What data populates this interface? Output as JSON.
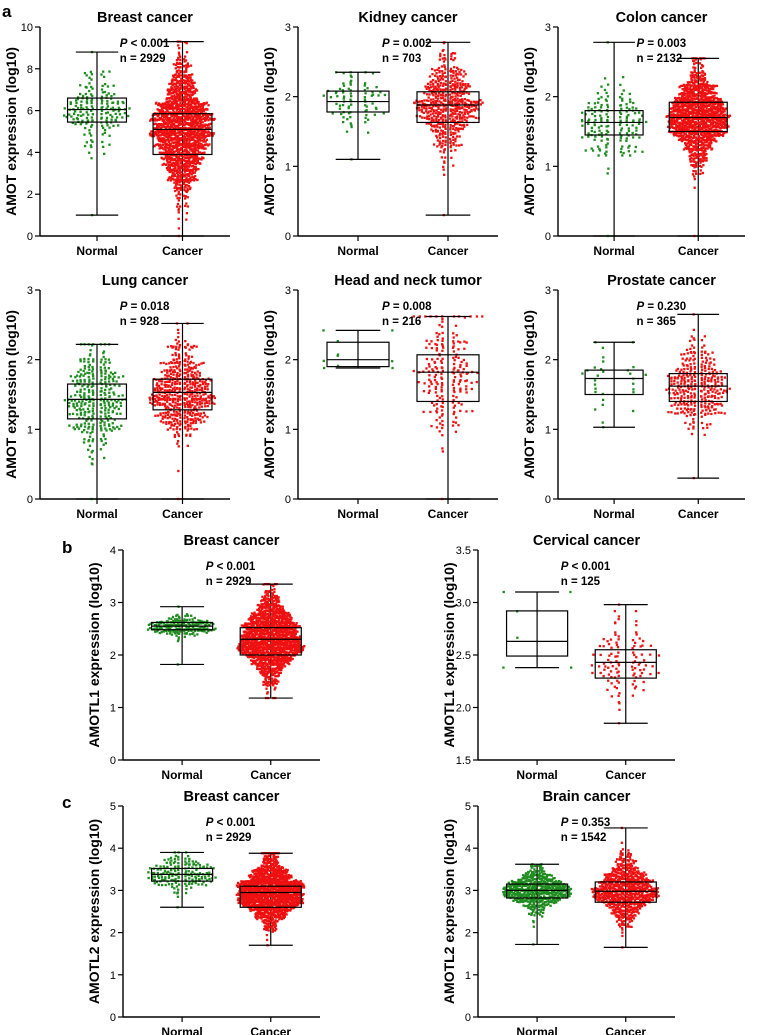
{
  "panel_labels": [
    "a",
    "b",
    "c"
  ],
  "colors": {
    "normal": "#1e8c1e",
    "cancer": "#ee1111",
    "axis": "#000000"
  },
  "chart_data": [
    {
      "id": "breast-amot",
      "panel": "a",
      "type": "box-scatter",
      "title": "Breast cancer",
      "ylabel": "AMOT expression (log10)",
      "ylim": [
        0,
        10
      ],
      "yticks": [
        "0",
        "2",
        "4",
        "6",
        "8",
        "10"
      ],
      "categories": [
        "Normal",
        "Cancer"
      ],
      "p_label": "P",
      "p_value": " < 0.001",
      "n_label": "n = 2929",
      "series": [
        {
          "name": "Normal",
          "min": 1.0,
          "q1": 5.45,
          "median": 6.05,
          "q3": 6.6,
          "max": 8.8,
          "point_count": 170
        },
        {
          "name": "Cancer",
          "min": 0.0,
          "q1": 3.9,
          "median": 5.1,
          "q3": 5.85,
          "max": 9.3,
          "point_count": 1400
        }
      ]
    },
    {
      "id": "kidney-amot",
      "panel": "a",
      "type": "box-scatter",
      "title": "Kidney cancer",
      "ylabel": "AMOT expression (log10)",
      "ylim": [
        0,
        3
      ],
      "yticks": [
        "0",
        "1",
        "2",
        "3"
      ],
      "categories": [
        "Normal",
        "Cancer"
      ],
      "p_label": "P",
      "p_value": " = 0.002",
      "n_label": "n = 703",
      "series": [
        {
          "name": "Normal",
          "min": 1.1,
          "q1": 1.78,
          "median": 1.93,
          "q3": 2.08,
          "max": 2.35,
          "point_count": 80
        },
        {
          "name": "Cancer",
          "min": 0.3,
          "q1": 1.63,
          "median": 1.88,
          "q3": 2.07,
          "max": 2.78,
          "point_count": 500
        }
      ]
    },
    {
      "id": "colon-amot",
      "panel": "a",
      "type": "box-scatter",
      "title": "Colon cancer",
      "ylabel": "AMOT expression (log10)",
      "ylim": [
        0,
        3
      ],
      "yticks": [
        "0",
        "1",
        "2",
        "3"
      ],
      "categories": [
        "Normal",
        "Cancer"
      ],
      "p_label": "P",
      "p_value": " = 0.003",
      "n_label": "n = 2132",
      "series": [
        {
          "name": "Normal",
          "min": 0.0,
          "q1": 1.45,
          "median": 1.63,
          "q3": 1.8,
          "max": 2.78,
          "point_count": 160
        },
        {
          "name": "Cancer",
          "min": 0.0,
          "q1": 1.5,
          "median": 1.7,
          "q3": 1.92,
          "max": 2.55,
          "point_count": 1100
        }
      ]
    },
    {
      "id": "lung-amot",
      "panel": "a",
      "type": "box-scatter",
      "title": "Lung cancer",
      "ylabel": "AMOT expression (log10)",
      "ylim": [
        0,
        3
      ],
      "yticks": [
        "0",
        "1",
        "2",
        "3"
      ],
      "categories": [
        "Normal",
        "Cancer"
      ],
      "p_label": "P",
      "p_value": " = 0.018",
      "n_label": "n = 928",
      "series": [
        {
          "name": "Normal",
          "min": 0.0,
          "q1": 1.15,
          "median": 1.43,
          "q3": 1.65,
          "max": 2.22,
          "point_count": 300
        },
        {
          "name": "Cancer",
          "min": 0.0,
          "q1": 1.28,
          "median": 1.53,
          "q3": 1.72,
          "max": 2.52,
          "point_count": 500
        }
      ]
    },
    {
      "id": "headneck-amot",
      "panel": "a",
      "type": "box-scatter",
      "title": "Head and neck tumor",
      "ylabel": "AMOT expression (log10)",
      "ylim": [
        0,
        3
      ],
      "yticks": [
        "0",
        "1",
        "2",
        "3"
      ],
      "categories": [
        "Normal",
        "Cancer"
      ],
      "p_label": "P",
      "p_value": " = 0.008",
      "n_label": "n = 216",
      "series": [
        {
          "name": "Normal",
          "min": 1.88,
          "q1": 1.9,
          "median": 2.0,
          "q3": 2.25,
          "max": 2.42,
          "point_count": 10
        },
        {
          "name": "Cancer",
          "min": 0.0,
          "q1": 1.4,
          "median": 1.82,
          "q3": 2.07,
          "max": 2.62,
          "point_count": 200
        }
      ]
    },
    {
      "id": "prostate-amot",
      "panel": "a",
      "type": "box-scatter",
      "title": "Prostate cancer",
      "ylabel": "AMOT expression (log10)",
      "ylim": [
        0,
        3
      ],
      "yticks": [
        "0",
        "1",
        "2",
        "3"
      ],
      "categories": [
        "Normal",
        "Cancer"
      ],
      "p_label": "P",
      "p_value": " = 0.230",
      "n_label": "n = 365",
      "series": [
        {
          "name": "Normal",
          "min": 1.03,
          "q1": 1.5,
          "median": 1.73,
          "q3": 1.85,
          "max": 2.25,
          "point_count": 30
        },
        {
          "name": "Cancer",
          "min": 0.3,
          "q1": 1.4,
          "median": 1.62,
          "q3": 1.8,
          "max": 2.65,
          "point_count": 320
        }
      ]
    },
    {
      "id": "breast-amotl1",
      "panel": "b",
      "type": "box-scatter",
      "title": "Breast cancer",
      "ylabel": "AMOTL1 expression (log10)",
      "ylim": [
        0,
        4
      ],
      "yticks": [
        "0",
        "1",
        "2",
        "3",
        "4"
      ],
      "categories": [
        "Normal",
        "Cancer"
      ],
      "p_label": "P",
      "p_value": " < 0.001",
      "n_label": "n = 2929",
      "series": [
        {
          "name": "Normal",
          "min": 1.82,
          "q1": 2.48,
          "median": 2.55,
          "q3": 2.62,
          "max": 2.92,
          "point_count": 170
        },
        {
          "name": "Cancer",
          "min": 1.18,
          "q1": 2.0,
          "median": 2.3,
          "q3": 2.52,
          "max": 3.35,
          "point_count": 1300
        }
      ]
    },
    {
      "id": "cervical-amotl1",
      "panel": "b",
      "type": "box-scatter",
      "title": "Cervical cancer",
      "ylabel": "AMOTL1 expression (log10)",
      "ylim": [
        1.5,
        3.5
      ],
      "yticks": [
        "1.5",
        "2.0",
        "2.5",
        "3.0",
        "3.5"
      ],
      "categories": [
        "Normal",
        "Cancer"
      ],
      "p_label": "P",
      "p_value": " < 0.001",
      "n_label": "n = 125",
      "series": [
        {
          "name": "Normal",
          "min": 2.38,
          "q1": 2.49,
          "median": 2.63,
          "q3": 2.92,
          "max": 3.1,
          "point_count": 6
        },
        {
          "name": "Cancer",
          "min": 1.85,
          "q1": 2.28,
          "median": 2.43,
          "q3": 2.55,
          "max": 2.98,
          "point_count": 110
        }
      ]
    },
    {
      "id": "breast-amotl2",
      "panel": "c",
      "type": "box-scatter",
      "title": "Breast cancer",
      "ylabel": "AMOTL2 expression (log10)",
      "ylim": [
        0,
        5
      ],
      "yticks": [
        "0",
        "1",
        "2",
        "3",
        "4",
        "5"
      ],
      "categories": [
        "Normal",
        "Cancer"
      ],
      "p_label": "P",
      "p_value": " < 0.001",
      "n_label": "n = 2929",
      "series": [
        {
          "name": "Normal",
          "min": 2.6,
          "q1": 3.22,
          "median": 3.38,
          "q3": 3.52,
          "max": 3.9,
          "point_count": 170
        },
        {
          "name": "Cancer",
          "min": 1.7,
          "q1": 2.6,
          "median": 2.95,
          "q3": 3.1,
          "max": 3.88,
          "point_count": 1300
        }
      ]
    },
    {
      "id": "brain-amotl2",
      "panel": "c",
      "type": "box-scatter",
      "title": "Brain cancer",
      "ylabel": "AMOTL2 expression (log10)",
      "ylim": [
        0,
        5
      ],
      "yticks": [
        "0",
        "1",
        "2",
        "3",
        "4",
        "5"
      ],
      "categories": [
        "Normal",
        "Cancer"
      ],
      "p_label": "P",
      "p_value": " = 0.353",
      "n_label": "n = 1542",
      "series": [
        {
          "name": "Normal",
          "min": 1.72,
          "q1": 2.82,
          "median": 3.0,
          "q3": 3.15,
          "max": 3.62,
          "point_count": 500
        },
        {
          "name": "Cancer",
          "min": 1.65,
          "q1": 2.72,
          "median": 2.98,
          "q3": 3.2,
          "max": 4.48,
          "point_count": 700
        }
      ]
    }
  ]
}
